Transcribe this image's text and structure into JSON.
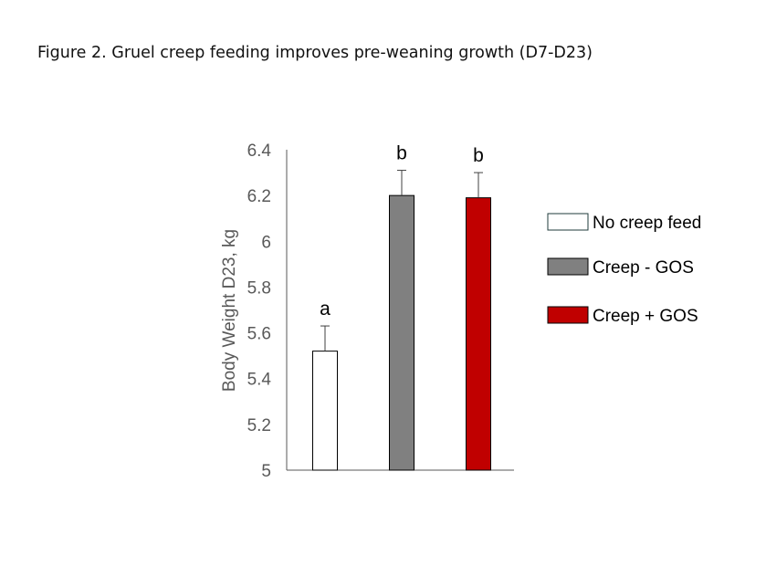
{
  "figure": {
    "title": "Figure 2. Gruel creep feeding improves pre-weaning growth (D7-D23)"
  },
  "chart_data": {
    "type": "bar",
    "title": "",
    "xlabel": "",
    "ylabel": "Body Weight D23, kg",
    "ylim": [
      5,
      6.4
    ],
    "yticks": [
      "5",
      "5.2",
      "5.4",
      "5.6",
      "5.8",
      "6",
      "6.2",
      "6.4"
    ],
    "grid": false,
    "legend_position": "right",
    "categories": [
      "No creep feed",
      "Creep - GOS",
      "Creep + GOS"
    ],
    "values": [
      5.52,
      6.2,
      6.19
    ],
    "error_upper": [
      5.63,
      6.31,
      6.3
    ],
    "significance_labels": [
      "a",
      "b",
      "b"
    ],
    "colors": [
      "#ffffff",
      "#808080",
      "#c00000"
    ],
    "legend": [
      "No creep feed",
      "Creep - GOS",
      "Creep + GOS"
    ]
  }
}
